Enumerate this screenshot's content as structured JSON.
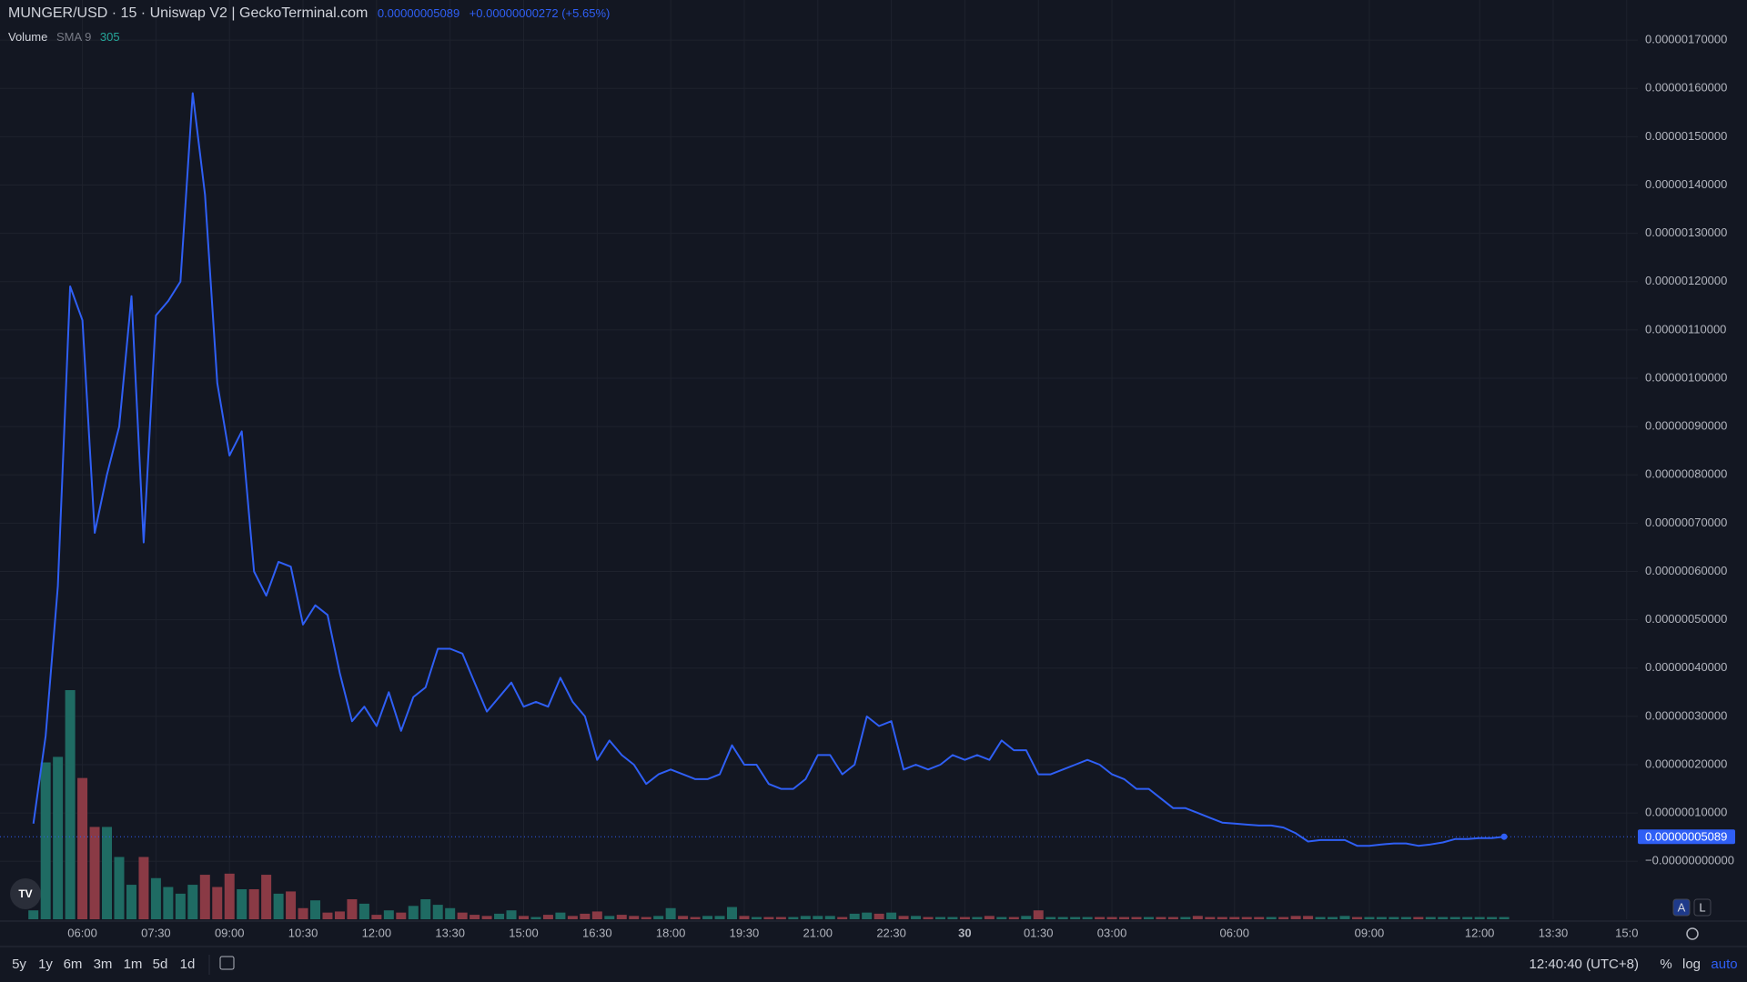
{
  "header": {
    "title": "MUNGER/USD · 15 · Uniswap V2 | GeckoTerminal.com",
    "change": "+0.00000000272 (+5.65%)",
    "volume_label": "Volume",
    "sma_label": "SMA 9",
    "sma_value": 305
  },
  "chart_data": {
    "type": "line",
    "color": "#2f5ff5",
    "categories": [
      null,
      null,
      null,
      null,
      "06:00",
      null,
      null,
      null,
      null,
      null,
      "07:30",
      null,
      null,
      null,
      null,
      null,
      "09:00",
      null,
      null,
      null,
      null,
      null,
      "10:30",
      null,
      null,
      null,
      null,
      null,
      "12:00",
      null,
      null,
      null,
      null,
      null,
      "13:30",
      null,
      null,
      null,
      null,
      null,
      "15:00",
      null,
      null,
      null,
      null,
      null,
      "16:30",
      null,
      null,
      null,
      null,
      null,
      "18:00",
      null,
      null,
      null,
      null,
      null,
      "19:30",
      null,
      null,
      null,
      null,
      null,
      "21:00",
      null,
      null,
      null,
      null,
      null,
      "22:30",
      null,
      null,
      null,
      null,
      null,
      "30",
      null,
      null,
      null,
      null,
      null,
      "01:30",
      null,
      null,
      null,
      null,
      null,
      "03:00",
      null,
      null,
      null,
      null,
      null,
      null,
      null,
      null,
      null,
      "06:00",
      null,
      null,
      null,
      null,
      null,
      null,
      null,
      null,
      null,
      null,
      "09:00",
      null,
      null,
      null,
      null,
      null,
      null,
      null,
      null,
      "12:00",
      null,
      null,
      null,
      null,
      null,
      "13:30",
      null,
      null,
      null,
      null,
      null,
      "15:0"
    ],
    "values": [
      7.8e-08,
      2.6e-07,
      5.7e-07,
      1.19e-06,
      1.12e-06,
      6.8e-07,
      8e-07,
      9e-07,
      1.17e-06,
      6.6e-07,
      1.13e-06,
      1.16e-06,
      1.2e-06,
      1.59e-06,
      1.38e-06,
      9.9e-07,
      8.4e-07,
      8.9e-07,
      6e-07,
      5.5e-07,
      6.2e-07,
      6.1e-07,
      4.9e-07,
      5.3e-07,
      5.1e-07,
      3.9e-07,
      2.9e-07,
      3.2e-07,
      2.8e-07,
      3.5e-07,
      2.7e-07,
      3.4e-07,
      3.6e-07,
      4.4e-07,
      4.4e-07,
      4.3e-07,
      3.7e-07,
      3.1e-07,
      3.4e-07,
      3.7e-07,
      3.2e-07,
      3.3e-07,
      3.2e-07,
      3.8e-07,
      3.3e-07,
      3e-07,
      2.1e-07,
      2.5e-07,
      2.2e-07,
      2e-07,
      1.6e-07,
      1.8e-07,
      1.9e-07,
      1.8e-07,
      1.7e-07,
      1.7e-07,
      1.8e-07,
      2.4e-07,
      2e-07,
      2e-07,
      1.6e-07,
      1.5e-07,
      1.5e-07,
      1.7e-07,
      2.2e-07,
      2.2e-07,
      1.8e-07,
      2e-07,
      3e-07,
      2.8e-07,
      2.9e-07,
      1.9e-07,
      2e-07,
      1.9e-07,
      2e-07,
      2.2e-07,
      2.1e-07,
      2.2e-07,
      2.1e-07,
      2.5e-07,
      2.3e-07,
      2.3e-07,
      1.8e-07,
      1.8e-07,
      1.9e-07,
      2e-07,
      2.1e-07,
      2e-07,
      1.8e-07,
      1.7e-07,
      1.5e-07,
      1.5e-07,
      1.3e-07,
      1.1e-07,
      1.1e-07,
      1e-07,
      9e-08,
      8e-08,
      7.8e-08,
      7.6e-08,
      7.4e-08,
      7.4e-08,
      7e-08,
      5.8e-08,
      4.1e-08,
      4.4e-08,
      4.4e-08,
      4.4e-08,
      3.2e-08,
      3.2e-08,
      3.5e-08,
      3.7e-08,
      3.7e-08,
      3.2e-08,
      3.5e-08,
      3.9e-08,
      4.6e-08,
      4.6e-08,
      4.8e-08,
      4.8e-08,
      5.089e-08,
      null,
      null,
      null,
      null,
      null,
      null,
      null,
      null,
      null,
      null
    ],
    "volume": {
      "up_color": "#1f6b63",
      "down_color": "#8a3a45",
      "values": [
        8,
        141,
        146,
        206,
        127,
        83,
        83,
        56,
        31,
        56,
        37,
        29,
        23,
        31,
        40,
        29,
        41,
        27,
        27,
        40,
        23,
        25,
        10,
        17,
        6,
        7,
        18,
        14,
        4,
        8,
        6,
        12,
        18,
        13,
        10,
        6,
        4,
        3,
        5,
        8,
        3,
        2,
        4,
        6,
        3,
        5,
        7,
        3,
        4,
        3,
        2,
        3,
        10,
        3,
        2,
        3,
        3,
        11,
        3,
        2,
        2,
        2,
        2,
        3,
        3,
        3,
        2,
        5,
        6,
        5,
        6,
        3,
        3,
        2,
        2,
        2,
        2,
        2,
        3,
        2,
        2,
        3,
        8,
        2,
        2,
        2,
        2,
        2,
        2,
        2,
        2,
        2,
        2,
        2,
        2,
        3,
        2,
        2,
        2,
        2,
        2,
        2,
        2,
        3,
        3,
        2,
        2,
        3,
        2,
        2,
        2,
        2,
        2,
        2,
        2,
        2,
        2,
        2,
        2,
        2,
        2,
        null,
        null,
        null,
        null,
        null,
        null,
        null,
        null,
        null,
        null
      ]
    },
    "last_price": {
      "value": 5.089e-08,
      "label": "0.00000005089"
    },
    "ylim": [
      -1.2e-07,
      1.783e-06
    ],
    "yticks": [
      {
        "value": 0,
        "label": "−0.00000000000"
      },
      {
        "value": 1e-07,
        "label": "0.00000010000"
      },
      {
        "value": 2e-07,
        "label": "0.00000020000"
      },
      {
        "value": 3e-07,
        "label": "0.00000030000"
      },
      {
        "value": 4e-07,
        "label": "0.00000040000"
      },
      {
        "value": 5e-07,
        "label": "0.00000050000"
      },
      {
        "value": 6e-07,
        "label": "0.00000060000"
      },
      {
        "value": 7e-07,
        "label": "0.00000070000"
      },
      {
        "value": 8e-07,
        "label": "0.00000080000"
      },
      {
        "value": 9e-07,
        "label": "0.00000090000"
      },
      {
        "value": 1e-06,
        "label": "0.00000100000"
      },
      {
        "value": 1.1e-06,
        "label": "0.00000110000"
      },
      {
        "value": 1.2e-06,
        "label": "0.00000120000"
      },
      {
        "value": 1.3e-06,
        "label": "0.00000130000"
      },
      {
        "value": 1.4e-06,
        "label": "0.00000140000"
      },
      {
        "value": 1.5e-06,
        "label": "0.00000150000"
      },
      {
        "value": 1.6e-06,
        "label": "0.00000160000"
      },
      {
        "value": 1.7e-06,
        "label": "0.00000170000"
      }
    ],
    "grid": true
  },
  "toolbar": {
    "ranges": [
      "5y",
      "1y",
      "6m",
      "3m",
      "1m",
      "5d",
      "1d"
    ],
    "clock": "12:40:40 (UTC+8)",
    "percent": "%",
    "log": "log",
    "auto": "auto",
    "price_buttons": [
      "A",
      "L"
    ]
  }
}
